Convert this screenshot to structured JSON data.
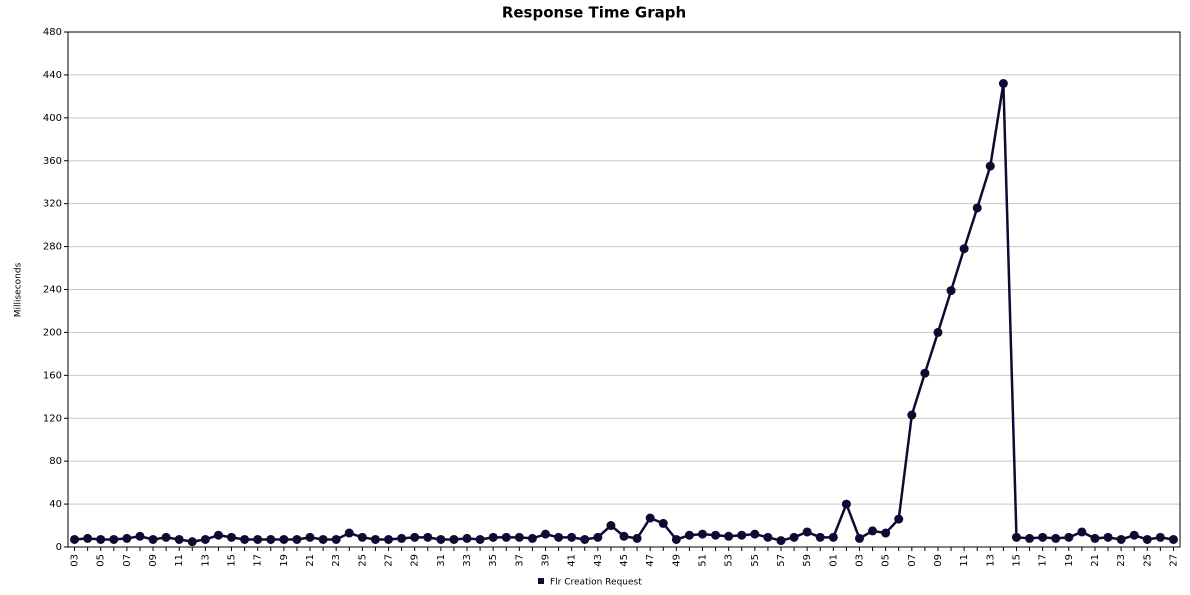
{
  "chart_data": {
    "type": "line",
    "title": "Response Time Graph",
    "y_label": "Milliseconds",
    "categories": [
      "03",
      null,
      "05",
      null,
      "07",
      null,
      "09",
      null,
      "11",
      null,
      "13",
      null,
      "15",
      null,
      "17",
      null,
      "19",
      null,
      "21",
      null,
      "23",
      null,
      "25",
      null,
      "27",
      null,
      "29",
      null,
      "31",
      null,
      "33",
      null,
      "35",
      null,
      "37",
      null,
      "39",
      null,
      "41",
      null,
      "43",
      null,
      "45",
      null,
      "47",
      null,
      "49",
      null,
      "51",
      null,
      "53",
      null,
      "55",
      null,
      "57",
      null,
      "59",
      null,
      "01",
      null,
      "03",
      null,
      "05",
      null,
      "07",
      null,
      "09",
      null,
      "11",
      null,
      "13",
      null,
      "15",
      null,
      "17",
      null,
      "19",
      null,
      "21",
      null,
      "23",
      null,
      "25",
      null,
      "27"
    ],
    "series": [
      {
        "name": "Flr Creation Request",
        "color": "#0e0b33",
        "values": [
          7,
          8,
          7,
          7,
          8,
          10,
          7,
          9,
          7,
          5,
          7,
          11,
          9,
          7,
          7,
          7,
          7,
          7,
          9,
          7,
          7,
          13,
          9,
          7,
          7,
          8,
          9,
          9,
          7,
          7,
          8,
          7,
          9,
          9,
          9,
          8,
          12,
          9,
          9,
          7,
          9,
          20,
          10,
          8,
          27,
          22,
          7,
          11,
          12,
          11,
          10,
          11,
          12,
          9,
          6,
          9,
          14,
          9,
          9,
          40,
          8,
          15,
          13,
          26,
          123,
          162,
          200,
          239,
          278,
          316,
          355,
          432,
          9,
          8,
          9,
          8,
          9,
          14,
          8,
          9,
          7,
          11,
          7,
          9,
          7
        ]
      }
    ],
    "ylim": [
      0,
      480
    ],
    "yticks": [
      0,
      40,
      80,
      120,
      160,
      200,
      240,
      280,
      320,
      360,
      400,
      440,
      480
    ],
    "grid": true,
    "legend": "bottom"
  }
}
